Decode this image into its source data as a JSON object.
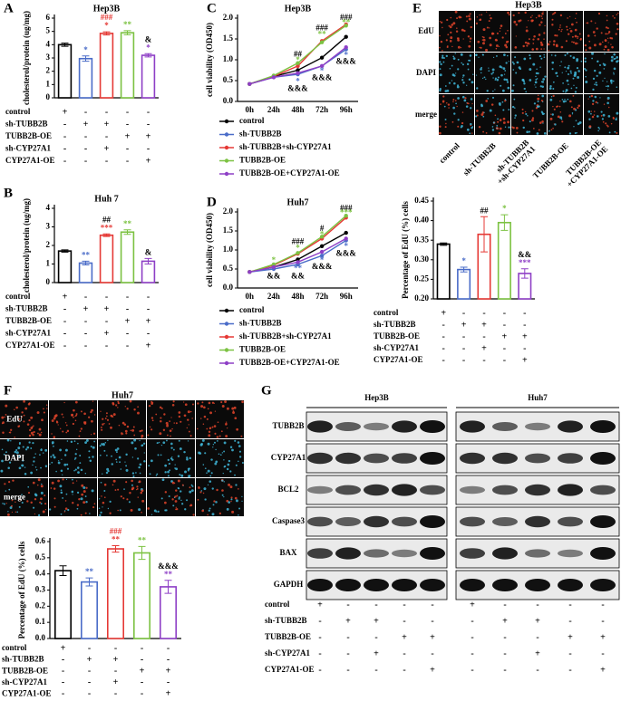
{
  "chart_data": [
    {
      "type": "bar",
      "label": "A",
      "title": "Hep3B",
      "y_label": "cholesterol/protein (ug/mg)",
      "values": [
        4.0,
        2.95,
        4.85,
        4.9,
        3.2
      ],
      "errors": [
        0.12,
        0.2,
        0.12,
        0.15,
        0.12
      ],
      "colors": [
        "#000000",
        "#4a6cc8",
        "#e53935",
        "#7cc242",
        "#8e3fc6"
      ],
      "ylim": [
        0,
        6
      ],
      "yticks": [
        0,
        1,
        2,
        3,
        4,
        5,
        6
      ],
      "annotations": [
        {
          "bar": 1,
          "text": "*",
          "color": "#4a6cc8"
        },
        {
          "bar": 2,
          "text": "*",
          "color": "#e53935"
        },
        {
          "bar": 2,
          "text": "###",
          "color": "#e53935"
        },
        {
          "bar": 3,
          "text": "**",
          "color": "#7cc242"
        },
        {
          "bar": 4,
          "text": "*",
          "color": "#8e3fc6"
        },
        {
          "bar": 4,
          "text": "&",
          "color": "#000000"
        }
      ],
      "treatments": [
        {
          "name": "control",
          "marks": [
            "+",
            "-",
            "-",
            "-",
            "-"
          ]
        },
        {
          "name": "sh-TUBB2B",
          "marks": [
            "-",
            "+",
            "+",
            "-",
            "-"
          ]
        },
        {
          "name": "TUBB2B-OE",
          "marks": [
            "-",
            "-",
            "-",
            "+",
            "+"
          ]
        },
        {
          "name": "sh-CYP27A1",
          "marks": [
            "-",
            "-",
            "+",
            "-",
            "-"
          ]
        },
        {
          "name": "CYP27A1-OE",
          "marks": [
            "-",
            "-",
            "-",
            "-",
            "+"
          ]
        }
      ]
    },
    {
      "type": "bar",
      "label": "B",
      "title": "Huh 7",
      "y_label": "cholesterol/protein (ug/mg)",
      "values": [
        1.7,
        1.05,
        2.55,
        2.72,
        1.15
      ],
      "errors": [
        0.06,
        0.1,
        0.07,
        0.12,
        0.15
      ],
      "colors": [
        "#000000",
        "#4a6cc8",
        "#e53935",
        "#7cc242",
        "#8e3fc6"
      ],
      "ylim": [
        0,
        4
      ],
      "yticks": [
        0,
        1,
        2,
        3,
        4
      ],
      "annotations": [
        {
          "bar": 1,
          "text": "**",
          "color": "#4a6cc8"
        },
        {
          "bar": 2,
          "text": "***",
          "color": "#e53935"
        },
        {
          "bar": 2,
          "text": "##",
          "color": "#000000"
        },
        {
          "bar": 3,
          "text": "**",
          "color": "#7cc242"
        },
        {
          "bar": 4,
          "text": "&",
          "color": "#000000"
        }
      ],
      "treatments": [
        {
          "name": "control",
          "marks": [
            "+",
            "-",
            "-",
            "-",
            "-"
          ]
        },
        {
          "name": "sh-TUBB2B",
          "marks": [
            "-",
            "+",
            "+",
            "-",
            "-"
          ]
        },
        {
          "name": "TUBB2B-OE",
          "marks": [
            "-",
            "-",
            "-",
            "+",
            "+"
          ]
        },
        {
          "name": "sh-CYP27A1",
          "marks": [
            "-",
            "-",
            "+",
            "-",
            "-"
          ]
        },
        {
          "name": "CYP27A1-OE",
          "marks": [
            "-",
            "-",
            "-",
            "-",
            "+"
          ]
        }
      ]
    },
    {
      "type": "line",
      "label": "C",
      "title": "Hep3B",
      "y_label": "cell viability (OD450)",
      "categories": [
        "0h",
        "24h",
        "48h",
        "72h",
        "96h"
      ],
      "ylim": [
        0,
        2
      ],
      "yticks": [
        {
          "value": 0,
          "label": "0.0"
        },
        0.5,
        {
          "value": 1,
          "label": "1.0"
        },
        1.5,
        {
          "value": 2,
          "label": "2.0"
        }
      ],
      "series": [
        {
          "name": "control",
          "color": "#000000",
          "values": [
            0.42,
            0.6,
            0.75,
            1.05,
            1.55
          ]
        },
        {
          "name": "sh-TUBB2B",
          "color": "#4a6cc8",
          "values": [
            0.42,
            0.58,
            0.65,
            0.85,
            1.25
          ]
        },
        {
          "name": "sh-TUBB2B+sh-CYP27A1",
          "color": "#e53935",
          "values": [
            0.42,
            0.6,
            0.85,
            1.45,
            1.85
          ]
        },
        {
          "name": "TUBB2B-OE",
          "color": "#7cc242",
          "values": [
            0.42,
            0.62,
            0.92,
            1.42,
            1.82
          ]
        },
        {
          "name": "TUBB2B-OE+CYP27A1-OE",
          "color": "#8e3fc6",
          "values": [
            0.42,
            0.58,
            0.68,
            0.85,
            1.3
          ]
        }
      ],
      "annotations": [
        {
          "x": 2,
          "y": 1.12,
          "text": "##",
          "color": "#000000"
        },
        {
          "x": 2,
          "y": 0.98,
          "text": "*",
          "color": "#7cc242"
        },
        {
          "x": 2,
          "y": 0.47,
          "text": "*",
          "color": "#4a6cc8"
        },
        {
          "x": 2,
          "y": 0.3,
          "text": "&&&",
          "color": "#000000"
        },
        {
          "x": 3,
          "y": 1.75,
          "text": "###",
          "color": "#000000"
        },
        {
          "x": 3,
          "y": 1.6,
          "text": "**",
          "color": "#7cc242"
        },
        {
          "x": 3,
          "y": 0.72,
          "text": "*",
          "color": "#4a6cc8"
        },
        {
          "x": 3,
          "y": 0.56,
          "text": "&&&",
          "color": "#000000"
        },
        {
          "x": 4,
          "y": 2.0,
          "text": "###",
          "color": "#000000"
        },
        {
          "x": 4,
          "y": 1.88,
          "text": "**",
          "color": "#7cc242"
        },
        {
          "x": 4,
          "y": 1.1,
          "text": "*",
          "color": "#4a6cc8"
        },
        {
          "x": 4,
          "y": 0.95,
          "text": "&&&",
          "color": "#000000"
        }
      ]
    },
    {
      "type": "line",
      "label": "D",
      "title": "Huh7",
      "y_label": "cell viability (OD450)",
      "categories": [
        "0h",
        "24h",
        "48h",
        "72h",
        "96h"
      ],
      "ylim": [
        0,
        2
      ],
      "yticks": [
        {
          "value": 0,
          "label": "0.0"
        },
        0.5,
        {
          "value": 1,
          "label": "1.0"
        },
        1.5,
        {
          "value": 2,
          "label": "2.0"
        }
      ],
      "series": [
        {
          "name": "control",
          "color": "#000000",
          "values": [
            0.42,
            0.55,
            0.75,
            1.1,
            1.45
          ]
        },
        {
          "name": "sh-TUBB2B",
          "color": "#4a6cc8",
          "values": [
            0.42,
            0.5,
            0.62,
            0.85,
            1.25
          ]
        },
        {
          "name": "sh-TUBB2B+sh-CYP27A1",
          "color": "#e53935",
          "values": [
            0.42,
            0.6,
            0.9,
            1.3,
            1.85
          ]
        },
        {
          "name": "TUBB2B-OE",
          "color": "#7cc242",
          "values": [
            0.42,
            0.62,
            0.92,
            1.35,
            1.9
          ]
        },
        {
          "name": "TUBB2B-OE+CYP27A1-OE",
          "color": "#8e3fc6",
          "values": [
            0.42,
            0.55,
            0.68,
            0.95,
            1.3
          ]
        }
      ],
      "annotations": [
        {
          "x": 1,
          "y": 0.72,
          "text": "*",
          "color": "#7cc242"
        },
        {
          "x": 1,
          "y": 0.3,
          "text": "&&",
          "color": "#000000"
        },
        {
          "x": 2,
          "y": 1.2,
          "text": "###",
          "color": "#000000"
        },
        {
          "x": 2,
          "y": 1.04,
          "text": "*",
          "color": "#7cc242"
        },
        {
          "x": 2,
          "y": 0.5,
          "text": "**",
          "color": "#4a6cc8"
        },
        {
          "x": 2,
          "y": 0.3,
          "text": "&&",
          "color": "#000000"
        },
        {
          "x": 3,
          "y": 1.55,
          "text": "#",
          "color": "#000000"
        },
        {
          "x": 3,
          "y": 1.4,
          "text": "*",
          "color": "#7cc242"
        },
        {
          "x": 3,
          "y": 0.72,
          "text": "*",
          "color": "#4a6cc8"
        },
        {
          "x": 3,
          "y": 0.55,
          "text": "&&&",
          "color": "#000000"
        },
        {
          "x": 4,
          "y": 2.08,
          "text": "###",
          "color": "#000000"
        },
        {
          "x": 4,
          "y": 1.96,
          "text": "***",
          "color": "#7cc242"
        },
        {
          "x": 4,
          "y": 1.08,
          "text": "*",
          "color": "#4a6cc8"
        },
        {
          "x": 4,
          "y": 0.9,
          "text": "&&&",
          "color": "#000000"
        }
      ]
    },
    {
      "type": "bar",
      "y_label": "Percentage of EdU (%) cells",
      "values": [
        0.34,
        0.275,
        0.365,
        0.395,
        0.265
      ],
      "errors": [
        0.003,
        0.006,
        0.045,
        0.02,
        0.012
      ],
      "colors": [
        "#000000",
        "#4a6cc8",
        "#e53935",
        "#7cc242",
        "#8e3fc6"
      ],
      "ylim": [
        0.2,
        0.45
      ],
      "yticks": [
        {
          "value": 0.2,
          "label": "0.20"
        },
        0.25,
        {
          "value": 0.3,
          "label": "0.30"
        },
        0.35,
        {
          "value": 0.4,
          "label": "0.40"
        },
        0.45
      ],
      "annotations": [
        {
          "bar": 1,
          "text": "*",
          "color": "#4a6cc8"
        },
        {
          "bar": 2,
          "text": "##",
          "color": "#000000"
        },
        {
          "bar": 3,
          "text": "*",
          "color": "#7cc242"
        },
        {
          "bar": 4,
          "text": "***",
          "color": "#8e3fc6"
        },
        {
          "bar": 4,
          "text": "&&",
          "color": "#000000"
        }
      ],
      "treatments": [
        {
          "name": "control",
          "marks": [
            "+",
            "-",
            "-",
            "-",
            "-"
          ]
        },
        {
          "name": "sh-TUBB2B",
          "marks": [
            "-",
            "+",
            "+",
            "-",
            "-"
          ]
        },
        {
          "name": "TUBB2B-OE",
          "marks": [
            "-",
            "-",
            "-",
            "+",
            "+"
          ]
        },
        {
          "name": "sh-CYP27A1",
          "marks": [
            "-",
            "-",
            "+",
            "-",
            "-"
          ]
        },
        {
          "name": "CYP27A1-OE",
          "marks": [
            "-",
            "-",
            "-",
            "-",
            "+"
          ]
        }
      ]
    },
    {
      "type": "bar",
      "y_label": "Percentage of EdU (%) cells",
      "values": [
        0.42,
        0.35,
        0.555,
        0.53,
        0.32
      ],
      "errors": [
        0.03,
        0.025,
        0.02,
        0.04,
        0.04
      ],
      "colors": [
        "#000000",
        "#4a6cc8",
        "#e53935",
        "#7cc242",
        "#8e3fc6"
      ],
      "ylim": [
        0,
        0.6
      ],
      "yticks": [
        {
          "value": 0,
          "label": "0.0"
        },
        0.1,
        0.2,
        0.3,
        0.4,
        0.5,
        0.6
      ],
      "annotations": [
        {
          "bar": 1,
          "text": "**",
          "color": "#4a6cc8"
        },
        {
          "bar": 2,
          "text": "**",
          "color": "#e53935"
        },
        {
          "bar": 2,
          "text": "###",
          "color": "#e53935"
        },
        {
          "bar": 3,
          "text": "**",
          "color": "#7cc242"
        },
        {
          "bar": 4,
          "text": "**",
          "color": "#8e3fc6"
        },
        {
          "bar": 4,
          "text": "&&&",
          "color": "#000000"
        }
      ],
      "treatments": [
        {
          "name": "control",
          "marks": [
            "+",
            "-",
            "-",
            "-",
            "-"
          ]
        },
        {
          "name": "sh-TUBB2B",
          "marks": [
            "-",
            "+",
            "+",
            "-",
            "-"
          ]
        },
        {
          "name": "TUBB2B-OE",
          "marks": [
            "-",
            "-",
            "-",
            "+",
            "+"
          ]
        },
        {
          "name": "sh-CYP27A1",
          "marks": [
            "-",
            "-",
            "+",
            "-",
            "-"
          ]
        },
        {
          "name": "CYP27A1-OE",
          "marks": [
            "-",
            "-",
            "-",
            "-",
            "+"
          ]
        }
      ]
    }
  ],
  "panels": {
    "E": {
      "label": "E",
      "title": "Hep3B",
      "rows": [
        "EdU",
        "DAPI",
        "merge"
      ],
      "columns": [
        "control",
        "sh-TUBB2B",
        "sh-TUBB2B\n+sh-CYP27A1",
        "TUBB2B-OE",
        "TUBB2B-OE\n+CYP27A1-OE"
      ]
    },
    "F": {
      "label": "F",
      "title": "Huh7",
      "rows": [
        "EdU",
        "DAPI",
        "merge"
      ]
    },
    "G": {
      "label": "G",
      "groups": [
        "Hep3B",
        "Huh7"
      ],
      "proteins": [
        "TUBB2B",
        "CYP27A1",
        "BCL2",
        "Caspase3",
        "BAX",
        "GAPDH"
      ],
      "treatments": [
        {
          "name": "control",
          "marks": [
            "+",
            "-",
            "-",
            "-",
            "-",
            "+",
            "-",
            "-",
            "-",
            "-"
          ]
        },
        {
          "name": "sh-TUBB2B",
          "marks": [
            "-",
            "+",
            "+",
            "-",
            "-",
            "-",
            "+",
            "+",
            "-",
            "-"
          ]
        },
        {
          "name": "TUBB2B-OE",
          "marks": [
            "-",
            "-",
            "-",
            "+",
            "+",
            "-",
            "-",
            "-",
            "+",
            "+"
          ]
        },
        {
          "name": "sh-CYP27A1",
          "marks": [
            "-",
            "-",
            "+",
            "-",
            "-",
            "-",
            "-",
            "+",
            "-",
            "-"
          ]
        },
        {
          "name": "CYP27A1-OE",
          "marks": [
            "-",
            "-",
            "-",
            "-",
            "+",
            "-",
            "-",
            "-",
            "-",
            "+"
          ]
        }
      ]
    }
  }
}
